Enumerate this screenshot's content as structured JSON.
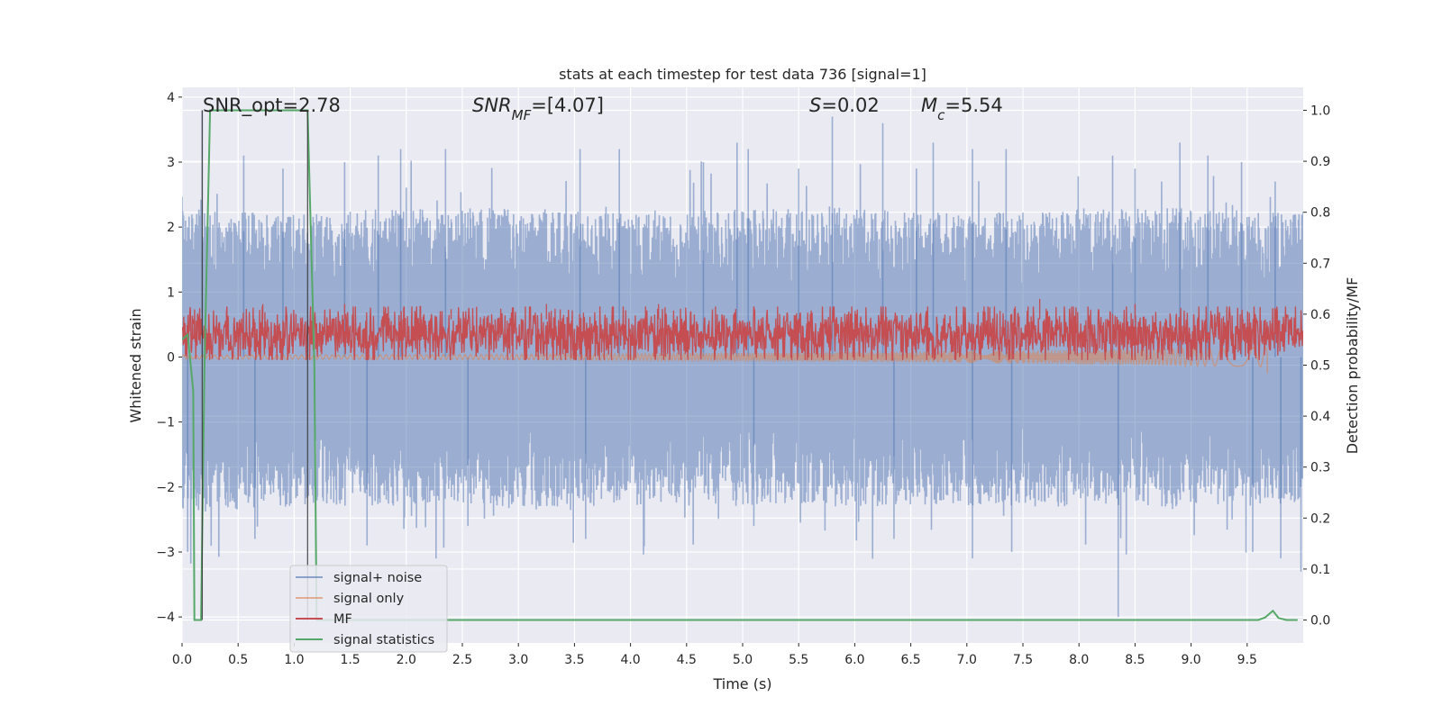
{
  "chart_data": {
    "type": "line",
    "title": "stats at each timestep for test data 736 [signal=1]",
    "xlabel": "Time (s)",
    "ylabel": "Whitened strain",
    "ylabel_right": "Detection probability/MF",
    "xlim": [
      0.0,
      10.0
    ],
    "ylim": [
      -4.4,
      4.15
    ],
    "ylim_right": [
      -0.045,
      1.045
    ],
    "x_ticks": [
      0.0,
      0.5,
      1.0,
      1.5,
      2.0,
      2.5,
      3.0,
      3.5,
      4.0,
      4.5,
      5.0,
      5.5,
      6.0,
      6.5,
      7.0,
      7.5,
      8.0,
      8.5,
      9.0,
      9.5
    ],
    "x_tick_labels": [
      "0.0",
      "0.5",
      "1.0",
      "1.5",
      "2.0",
      "2.5",
      "3.0",
      "3.5",
      "4.0",
      "4.5",
      "5.0",
      "5.5",
      "6.0",
      "6.5",
      "7.0",
      "7.5",
      "8.0",
      "8.5",
      "9.0",
      "9.5"
    ],
    "y_ticks": [
      -4,
      -3,
      -2,
      -1,
      0,
      1,
      2,
      3,
      4
    ],
    "y_tick_labels": [
      "−4",
      "−3",
      "−2",
      "−1",
      "0",
      "1",
      "2",
      "3",
      "4"
    ],
    "y_ticks_right": [
      0.0,
      0.1,
      0.2,
      0.3,
      0.4,
      0.5,
      0.6,
      0.7,
      0.8,
      0.9,
      1.0
    ],
    "y_tick_labels_right": [
      "0.0",
      "0.1",
      "0.2",
      "0.3",
      "0.4",
      "0.5",
      "0.6",
      "0.7",
      "0.8",
      "0.9",
      "1.0"
    ],
    "grid": true,
    "legend_position": "lower-left",
    "vlines": [
      0.18,
      1.12
    ],
    "annotations": [
      {
        "name": "snr-opt",
        "parts": [
          {
            "t": "SNR_opt=2.78",
            "i": false
          }
        ]
      },
      {
        "name": "snr-mf",
        "parts": [
          {
            "t": "SNR",
            "i": true
          },
          {
            "t": "MF",
            "i": true,
            "sub": true
          },
          {
            "t": "=[4.07]",
            "i": false
          }
        ]
      },
      {
        "name": "s-value",
        "parts": [
          {
            "t": "S",
            "i": true
          },
          {
            "t": "=0.02",
            "i": false
          }
        ]
      },
      {
        "name": "mc-value",
        "parts": [
          {
            "t": "M",
            "i": true
          },
          {
            "t": "c",
            "i": true,
            "sub": true
          },
          {
            "t": "=5.54",
            "i": false
          }
        ]
      }
    ],
    "series": [
      {
        "name": "signal+ noise",
        "color": "#4c72b0",
        "opacity": 0.5,
        "axis": "left",
        "kind": "noise",
        "envelope_upper": [
          [
            0.0,
            2.3
          ],
          [
            1.0,
            2.2
          ],
          [
            2.0,
            2.3
          ],
          [
            3.0,
            2.3
          ],
          [
            4.0,
            2.2
          ],
          [
            5.0,
            2.3
          ],
          [
            6.0,
            2.3
          ],
          [
            7.0,
            2.2
          ],
          [
            8.0,
            2.3
          ],
          [
            9.0,
            2.3
          ],
          [
            10.0,
            2.2
          ]
        ],
        "envelope_lower": [
          [
            0.0,
            -2.4
          ],
          [
            1.0,
            -2.3
          ],
          [
            2.0,
            -2.3
          ],
          [
            3.0,
            -2.3
          ],
          [
            4.0,
            -2.3
          ],
          [
            5.0,
            -2.3
          ],
          [
            6.0,
            -2.3
          ],
          [
            7.0,
            -2.3
          ],
          [
            8.0,
            -2.3
          ],
          [
            9.0,
            -2.3
          ],
          [
            10.0,
            -2.3
          ]
        ],
        "peaks": [
          [
            0.18,
            3.8
          ],
          [
            0.55,
            3.1
          ],
          [
            0.9,
            2.9
          ],
          [
            1.45,
            3.0
          ],
          [
            1.75,
            3.1
          ],
          [
            1.95,
            3.2
          ],
          [
            2.35,
            3.2
          ],
          [
            3.55,
            3.2
          ],
          [
            3.9,
            3.2
          ],
          [
            4.65,
            3.0
          ],
          [
            4.95,
            3.3
          ],
          [
            5.05,
            3.2
          ],
          [
            5.5,
            2.9
          ],
          [
            5.8,
            3.7
          ],
          [
            6.25,
            3.6
          ],
          [
            6.55,
            2.9
          ],
          [
            6.7,
            3.3
          ],
          [
            7.05,
            3.2
          ],
          [
            7.35,
            3.2
          ],
          [
            8.3,
            3.1
          ],
          [
            8.5,
            2.9
          ],
          [
            8.9,
            3.3
          ],
          [
            9.15,
            3.1
          ],
          [
            9.45,
            3.0
          ],
          [
            9.75,
            2.7
          ]
        ],
        "troughs": [
          [
            0.05,
            -3.0
          ],
          [
            0.65,
            -2.8
          ],
          [
            1.65,
            -2.9
          ],
          [
            2.55,
            -2.6
          ],
          [
            3.6,
            -2.8
          ],
          [
            5.1,
            -2.6
          ],
          [
            6.35,
            -2.8
          ],
          [
            7.05,
            -3.1
          ],
          [
            7.4,
            -3.0
          ],
          [
            8.35,
            -4.0
          ],
          [
            9.55,
            -3.0
          ],
          [
            9.8,
            -3.1
          ],
          [
            9.98,
            -3.3
          ]
        ]
      },
      {
        "name": "signal only",
        "color": "#dd8452",
        "opacity": 0.55,
        "axis": "left",
        "kind": "chirp",
        "amp_start": 0.03,
        "amp_end": 0.15,
        "end_time": 9.68,
        "final_spike": -0.25
      },
      {
        "name": "MF",
        "color": "#c44e52",
        "opacity": 1.0,
        "axis": "right",
        "kind": "band",
        "band": [
          0.52,
          0.6
        ],
        "peaks": [
          [
            0.1,
            0.58
          ],
          [
            0.72,
            0.62
          ],
          [
            1.45,
            0.62
          ],
          [
            2.4,
            0.61
          ],
          [
            3.25,
            0.62
          ],
          [
            4.25,
            0.62
          ],
          [
            7.65,
            0.63
          ],
          [
            8.5,
            0.62
          ]
        ]
      },
      {
        "name": "signal statistics",
        "color": "#55a868",
        "opacity": 1.0,
        "axis": "right",
        "kind": "line",
        "points": [
          [
            0.0,
            0.55
          ],
          [
            0.05,
            0.56
          ],
          [
            0.1,
            0.45
          ],
          [
            0.11,
            0.0
          ],
          [
            0.17,
            0.0
          ],
          [
            0.2,
            0.5
          ],
          [
            0.25,
            1.0
          ],
          [
            1.11,
            1.0
          ],
          [
            1.12,
            1.0
          ],
          [
            1.18,
            0.5
          ],
          [
            1.2,
            0.0
          ],
          [
            9.6,
            0.0
          ],
          [
            9.66,
            0.005
          ],
          [
            9.73,
            0.018
          ],
          [
            9.78,
            0.004
          ],
          [
            9.85,
            0.0
          ],
          [
            9.95,
            0.0
          ]
        ]
      }
    ]
  }
}
